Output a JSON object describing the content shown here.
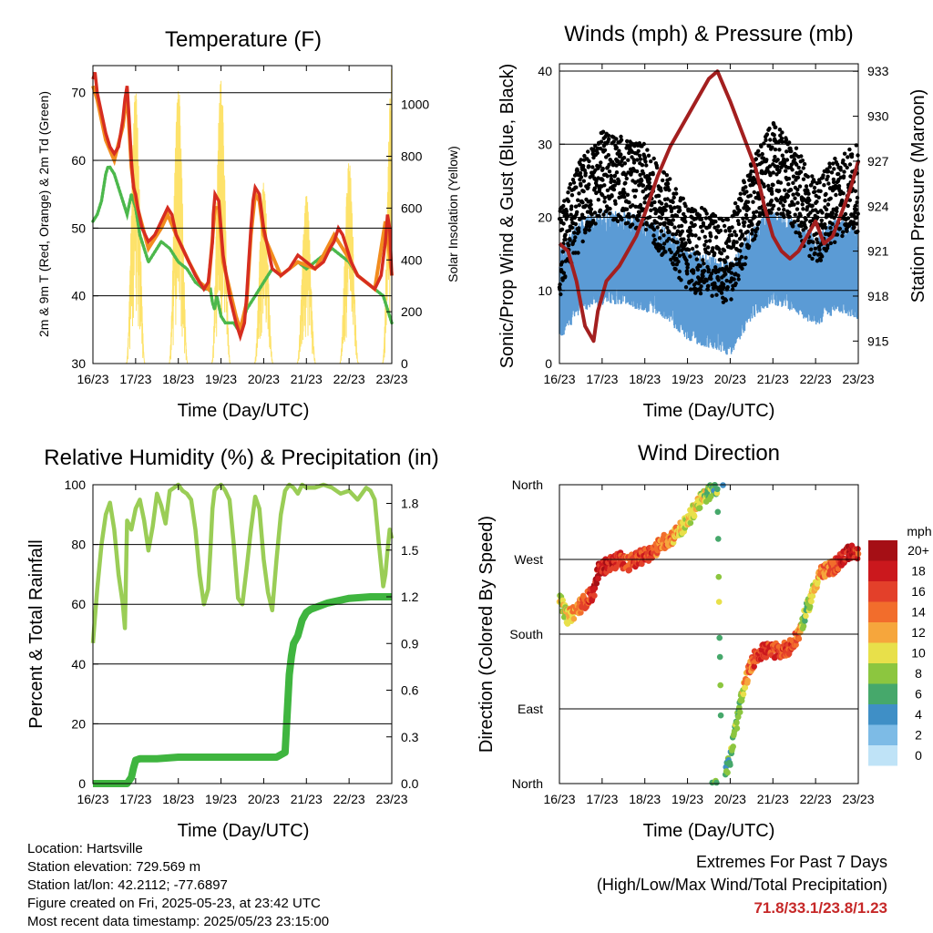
{
  "footer": {
    "location": "Location: Hartsville",
    "elevation": "Station elevation: 729.569 m",
    "latlon": "Station lat/lon: 42.2112; -77.6897",
    "created": "Figure created on Fri, 2025-05-23, at 23:42 UTC",
    "recent": "Most recent data timestamp: 2025/05/23 23:15:00"
  },
  "extremes": {
    "title": "Extremes For Past 7 Days",
    "subtitle": "(High/Low/Max Wind/Total Precipitation)",
    "values": "71.8/33.1/23.8/1.23"
  },
  "legend": {
    "title": "mph",
    "labels": [
      "20+",
      "18",
      "16",
      "14",
      "12",
      "10",
      "8",
      "6",
      "4",
      "2",
      "0"
    ],
    "colors": [
      "#a50f15",
      "#cb181d",
      "#e3402a",
      "#f26d2c",
      "#f6a63c",
      "#e8e04a",
      "#8cc63f",
      "#46a86b",
      "#3f8fc6",
      "#7dbbe6",
      "#bfe3f7"
    ]
  },
  "chart_data": [
    {
      "type": "line",
      "title": "Temperature (F)",
      "xlabel": "Time (Day/UTC)",
      "ylabel": "2m & 9m T (Red, Orange) & 2m Td (Green)",
      "y2label": "Solar Insolation (Yellow)",
      "x_ticks": [
        "16/23",
        "17/23",
        "18/23",
        "19/23",
        "20/23",
        "21/23",
        "22/23",
        "23/23"
      ],
      "xlim": [
        0,
        7
      ],
      "ylim": [
        30,
        74
      ],
      "y_ticks": [
        30,
        40,
        50,
        60,
        70
      ],
      "y2lim": [
        0,
        1150
      ],
      "y2_ticks": [
        0,
        200,
        400,
        600,
        800,
        1000
      ],
      "grid": "horizontal",
      "colors": {
        "t2m": "#d62d20",
        "t9m": "#f28c1e",
        "td": "#4cb84c",
        "solar": "#fde26a"
      },
      "series": [
        {
          "key": "t2m",
          "x": [
            0,
            0.05,
            0.1,
            0.2,
            0.3,
            0.4,
            0.5,
            0.6,
            0.7,
            0.75,
            0.8,
            0.85,
            0.9,
            0.95,
            1.0,
            1.05,
            1.15,
            1.3,
            1.45,
            1.6,
            1.75,
            1.85,
            1.95,
            2.1,
            2.25,
            2.4,
            2.5,
            2.6,
            2.7,
            2.8,
            2.82,
            2.86,
            2.95,
            3.05,
            3.2,
            3.35,
            3.45,
            3.55,
            3.6,
            3.65,
            3.7,
            3.75,
            3.8,
            3.9,
            4.0,
            4.2,
            4.4,
            4.6,
            4.8,
            5.0,
            5.2,
            5.4,
            5.55,
            5.65,
            5.75,
            5.85,
            5.95,
            6.05,
            6.2,
            6.4,
            6.6,
            6.75,
            6.85,
            6.9,
            6.95,
            7.0
          ],
          "values": [
            72,
            73,
            70,
            67,
            64,
            62,
            61,
            62,
            66,
            69,
            71,
            66,
            60,
            56,
            55,
            53,
            50,
            48,
            49,
            51,
            53,
            52,
            49,
            47,
            45,
            43,
            42,
            41,
            42,
            48,
            52,
            55,
            54,
            46,
            40,
            36,
            34,
            36,
            40,
            45,
            50,
            54,
            56,
            55,
            50,
            44,
            43,
            44,
            46,
            45,
            44,
            45,
            47,
            48,
            50,
            49,
            47,
            45,
            43,
            42,
            41,
            43,
            48,
            52,
            50,
            43
          ]
        },
        {
          "key": "t9m",
          "x": [
            0,
            0.1,
            0.3,
            0.5,
            0.7,
            0.8,
            0.9,
            1.0,
            1.3,
            1.6,
            1.75,
            1.95,
            2.25,
            2.5,
            2.7,
            2.86,
            2.95,
            3.05,
            3.35,
            3.45,
            3.6,
            3.7,
            3.8,
            3.9,
            4.0,
            4.4,
            4.8,
            5.2,
            5.4,
            5.65,
            5.75,
            5.95,
            6.2,
            6.6,
            6.85,
            6.9,
            7.0
          ],
          "values": [
            71,
            69,
            63,
            60,
            65,
            70,
            59,
            54,
            47,
            50,
            52,
            49,
            45,
            42,
            41,
            53,
            53,
            45,
            37,
            35,
            39,
            49,
            55,
            54,
            49,
            43,
            45,
            44,
            46,
            49,
            48,
            46,
            43,
            41,
            51,
            49,
            43
          ]
        },
        {
          "key": "td",
          "x": [
            0,
            0.1,
            0.2,
            0.3,
            0.35,
            0.4,
            0.5,
            0.6,
            0.7,
            0.8,
            0.9,
            1.0,
            1.1,
            1.2,
            1.3,
            1.4,
            1.5,
            1.6,
            1.8,
            2.0,
            2.2,
            2.4,
            2.6,
            2.75,
            2.8,
            2.85,
            2.9,
            3.0,
            3.1,
            3.2,
            3.3,
            3.4,
            3.5,
            3.6,
            3.7,
            3.8,
            3.9,
            4.0,
            4.2,
            4.4,
            4.6,
            4.8,
            5.0,
            5.2,
            5.4,
            5.6,
            5.8,
            6.0,
            6.2,
            6.4,
            6.6,
            6.8,
            6.9,
            7.0
          ],
          "values": [
            51,
            52,
            54,
            58,
            59,
            59,
            58,
            56,
            54,
            52,
            55,
            53,
            49,
            47,
            45,
            46,
            47,
            48,
            47,
            45,
            44,
            42,
            41,
            41,
            39,
            38,
            40,
            37,
            36,
            36,
            36,
            35,
            36,
            38,
            39,
            40,
            41,
            42,
            44,
            43,
            44,
            45,
            44,
            45,
            46,
            47,
            46,
            45,
            43,
            42,
            41,
            40,
            38,
            36
          ]
        },
        {
          "key": "solar",
          "days": [
            0,
            1,
            2,
            3,
            4,
            5,
            6,
            7
          ],
          "peaks": [
            0,
            1050,
            1080,
            1100,
            700,
            650,
            780,
            1140
          ]
        }
      ]
    },
    {
      "type": "scatter",
      "title": "Winds (mph) & Pressure (mb)",
      "xlabel": "Time (Day/UTC)",
      "ylabel": "Sonic/Prop Wind & Gust (Blue, Black)",
      "y2label": "Station Pressure (Maroon)",
      "x_ticks": [
        "16/23",
        "17/23",
        "18/23",
        "19/23",
        "20/23",
        "21/23",
        "22/23",
        "23/23"
      ],
      "xlim": [
        0,
        7
      ],
      "ylim": [
        0,
        41
      ],
      "y_ticks": [
        0,
        10,
        20,
        30,
        40
      ],
      "y2lim": [
        913.5,
        933.5
      ],
      "y2_ticks": [
        915,
        918,
        921,
        924,
        927,
        930,
        933
      ],
      "grid": "horizontal",
      "colors": {
        "wind": "#5b9bd5",
        "gust": "#000000",
        "pressure": "#a31f1f"
      },
      "series": [
        {
          "key": "wind_mean",
          "x": [
            0,
            0.5,
            1,
            1.5,
            2,
            2.5,
            3,
            3.5,
            4,
            4.5,
            5,
            5.5,
            6,
            6.5,
            7
          ],
          "values": [
            10,
            14,
            15,
            15,
            14,
            13,
            10,
            9,
            8,
            13,
            15,
            14,
            12,
            14,
            13
          ]
        },
        {
          "key": "gust_mean",
          "x": [
            0,
            0.5,
            1,
            1.5,
            2,
            2.5,
            3,
            3.5,
            4,
            4.5,
            5,
            5.5,
            6,
            6.5,
            7
          ],
          "values": [
            15,
            22,
            26,
            25,
            24,
            20,
            16,
            15,
            14,
            22,
            27,
            24,
            19,
            23,
            24
          ]
        },
        {
          "key": "pressure",
          "x": [
            0,
            0.2,
            0.4,
            0.6,
            0.8,
            0.9,
            1.1,
            1.4,
            1.6,
            1.8,
            2.0,
            2.3,
            2.6,
            2.9,
            3.2,
            3.5,
            3.7,
            3.85,
            4.0,
            4.2,
            4.4,
            4.6,
            4.8,
            5.0,
            5.2,
            5.4,
            5.6,
            5.8,
            6.0,
            6.2,
            6.4,
            6.6,
            6.8,
            7.0
          ],
          "values": [
            921.5,
            921,
            919,
            916,
            915,
            917,
            919,
            920,
            921,
            922,
            923.5,
            926,
            928,
            929.5,
            931,
            932.5,
            933,
            932,
            931,
            929.5,
            928,
            926.5,
            924,
            922,
            921,
            920.5,
            921,
            922,
            923,
            921.5,
            922,
            923.5,
            925,
            927
          ]
        }
      ]
    },
    {
      "type": "line",
      "title": "Relative Humidity (%) & Precipitation (in)",
      "xlabel": "Time (Day/UTC)",
      "ylabel": "Percent & Total Rainfall",
      "x_ticks": [
        "16/23",
        "17/23",
        "18/23",
        "19/23",
        "20/23",
        "21/23",
        "22/23",
        "23/23"
      ],
      "xlim": [
        0,
        7
      ],
      "ylim": [
        0,
        100
      ],
      "y_ticks": [
        0,
        20,
        40,
        60,
        80,
        100
      ],
      "y2lim": [
        0,
        1.92
      ],
      "y2_ticks": [
        0.0,
        0.3,
        0.6,
        0.9,
        1.2,
        1.5,
        1.8
      ],
      "grid": "horizontal",
      "colors": {
        "rh": "#9acd56",
        "precip": "#3fb53f"
      },
      "series": [
        {
          "key": "rh",
          "x": [
            0,
            0.1,
            0.2,
            0.3,
            0.4,
            0.5,
            0.6,
            0.7,
            0.75,
            0.8,
            0.9,
            1.0,
            1.1,
            1.2,
            1.3,
            1.4,
            1.5,
            1.6,
            1.7,
            1.8,
            1.9,
            2.0,
            2.1,
            2.2,
            2.3,
            2.4,
            2.5,
            2.6,
            2.7,
            2.75,
            2.8,
            2.85,
            2.9,
            3.0,
            3.1,
            3.2,
            3.3,
            3.4,
            3.5,
            3.6,
            3.7,
            3.8,
            3.9,
            4.0,
            4.1,
            4.2,
            4.3,
            4.4,
            4.5,
            4.6,
            4.7,
            4.8,
            4.9,
            5.0,
            5.2,
            5.4,
            5.6,
            5.8,
            6.0,
            6.2,
            6.4,
            6.5,
            6.6,
            6.7,
            6.8,
            6.85,
            6.9,
            6.95,
            7.0
          ],
          "values": [
            47,
            65,
            80,
            90,
            94,
            85,
            70,
            60,
            52,
            88,
            85,
            92,
            95,
            88,
            78,
            86,
            97,
            93,
            87,
            98,
            99,
            100,
            98,
            97,
            95,
            85,
            70,
            60,
            65,
            78,
            92,
            98,
            99,
            100,
            98,
            95,
            80,
            62,
            60,
            72,
            85,
            96,
            92,
            75,
            64,
            58,
            75,
            90,
            98,
            100,
            99,
            97,
            100,
            99,
            99,
            100,
            99,
            97,
            98,
            95,
            99,
            98,
            95,
            80,
            66,
            70,
            78,
            85,
            82
          ]
        },
        {
          "key": "precip",
          "x": [
            0,
            0.3,
            0.6,
            0.8,
            0.9,
            0.95,
            1.0,
            1.1,
            1.5,
            2.0,
            2.5,
            3.0,
            3.5,
            4.0,
            4.3,
            4.5,
            4.55,
            4.6,
            4.65,
            4.7,
            4.8,
            4.9,
            5.0,
            5.1,
            5.5,
            6.0,
            6.5,
            7.0
          ],
          "values": [
            0,
            0,
            0,
            0,
            0.04,
            0.1,
            0.15,
            0.16,
            0.16,
            0.17,
            0.17,
            0.17,
            0.17,
            0.17,
            0.17,
            0.2,
            0.45,
            0.7,
            0.82,
            0.9,
            0.95,
            1.05,
            1.1,
            1.12,
            1.16,
            1.19,
            1.2,
            1.2
          ]
        }
      ]
    },
    {
      "type": "scatter",
      "title": "Wind Direction",
      "xlabel": "Time (Day/UTC)",
      "ylabel": "Direction (Colored By Speed)",
      "x_ticks": [
        "16/23",
        "17/23",
        "18/23",
        "19/23",
        "20/23",
        "21/23",
        "22/23",
        "23/23"
      ],
      "xlim": [
        0,
        7
      ],
      "ylim": [
        0,
        360
      ],
      "y_ticks": [
        "North",
        "East",
        "South",
        "West",
        "North"
      ],
      "grid": "horizontal",
      "series": [
        {
          "key": "direction",
          "x": [
            0,
            0.2,
            0.4,
            0.6,
            0.8,
            0.9,
            1.0,
            1.2,
            1.4,
            1.6,
            1.8,
            2.0,
            2.2,
            2.4,
            2.6,
            2.8,
            3.0,
            3.1,
            3.2,
            3.4,
            3.5,
            3.6,
            3.7,
            3.8,
            3.9,
            4.0,
            4.1,
            4.2,
            4.3,
            4.4,
            4.6,
            4.8,
            5.0,
            5.2,
            5.4,
            5.5,
            5.6,
            5.7,
            5.8,
            5.9,
            6.0,
            6.1,
            6.2,
            6.4,
            6.6,
            6.8,
            7.0
          ],
          "direction": [
            220,
            200,
            210,
            220,
            230,
            255,
            260,
            265,
            270,
            265,
            270,
            275,
            280,
            290,
            295,
            305,
            315,
            325,
            335,
            345,
            350,
            355,
            358,
            5,
            15,
            30,
            60,
            85,
            110,
            130,
            155,
            160,
            160,
            160,
            165,
            170,
            180,
            195,
            210,
            225,
            240,
            255,
            255,
            260,
            270,
            280,
            275
          ],
          "speed": [
            10,
            12,
            14,
            16,
            18,
            20,
            20,
            18,
            18,
            16,
            17,
            18,
            16,
            15,
            14,
            12,
            11,
            10,
            11,
            10,
            9,
            8,
            9,
            8,
            7,
            8,
            9,
            8,
            12,
            14,
            17,
            18,
            17,
            16,
            17,
            16,
            15,
            10,
            9,
            11,
            12,
            14,
            15,
            16,
            18,
            20,
            17
          ]
        }
      ]
    }
  ]
}
